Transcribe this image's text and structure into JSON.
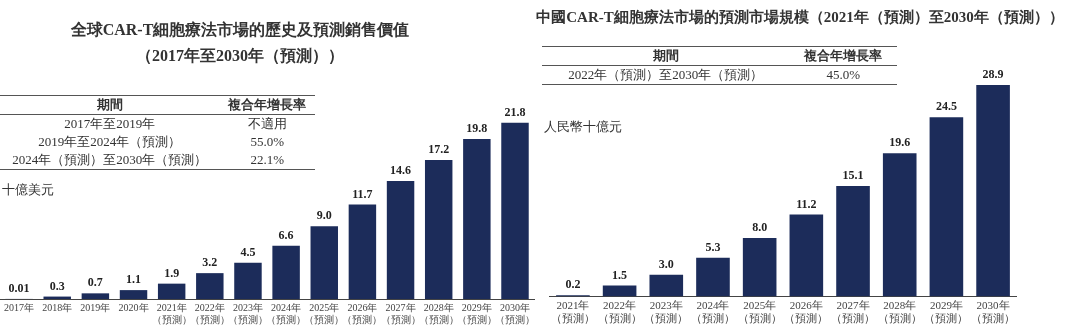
{
  "chart_data": [
    {
      "type": "bar",
      "title": "全球CAR-T細胞療法市場的歷史及預測銷售價值",
      "subtitle": "（2017年至2030年（預測））",
      "ylabel": "十億美元",
      "categories": [
        "2017年",
        "2018年",
        "2019年",
        "2020年",
        "2021年（預測）",
        "2022年（預測）",
        "2023年（預測）",
        "2024年（預測）",
        "2025年（預測）",
        "2026年（預測）",
        "2027年（預測）",
        "2028年（預測）",
        "2029年（預測）",
        "2030年（預測）"
      ],
      "values": [
        0.01,
        0.3,
        0.7,
        1.1,
        1.9,
        3.2,
        4.5,
        6.6,
        9.0,
        11.7,
        14.6,
        17.2,
        19.8,
        21.8
      ],
      "value_labels": [
        "0.01",
        "0.3",
        "0.7",
        "1.1",
        "1.9",
        "3.2",
        "4.5",
        "6.6",
        "9.0",
        "11.7",
        "14.6",
        "17.2",
        "19.8",
        "21.8"
      ],
      "color": "#1c2c5a",
      "legend": false,
      "grid": false,
      "annotations": [
        "期間",
        "複合年增長率",
        "2017年至2019年",
        "不適用",
        "2019年至2024年（預測）",
        "55.0%",
        "2024年（預測）至2030年（預測）",
        "22.1%"
      ]
    },
    {
      "type": "bar",
      "title": "中國CAR-T細胞療法市場的預測市場規模（2021年（預測）至2030年（預測））",
      "ylabel": "人民幣十億元",
      "categories": [
        "2021年（預測）",
        "2022年（預測）",
        "2023年（預測）",
        "2024年（預測）",
        "2025年（預測）",
        "2026年（預測）",
        "2027年（預測）",
        "2028年（預測）",
        "2029年（預測）",
        "2030年（預測）"
      ],
      "values": [
        0.2,
        1.5,
        3.0,
        5.3,
        8.0,
        11.2,
        15.1,
        19.6,
        24.5,
        28.9
      ],
      "value_labels": [
        "0.2",
        "1.5",
        "3.0",
        "5.3",
        "8.0",
        "11.2",
        "15.1",
        "19.6",
        "24.5",
        "28.9"
      ],
      "color": "#1c2c5a",
      "legend": false,
      "grid": false,
      "annotations": [
        "期間",
        "複合年增長率",
        "2022年（預測）至2030年（預測）",
        "45.0%"
      ]
    }
  ]
}
